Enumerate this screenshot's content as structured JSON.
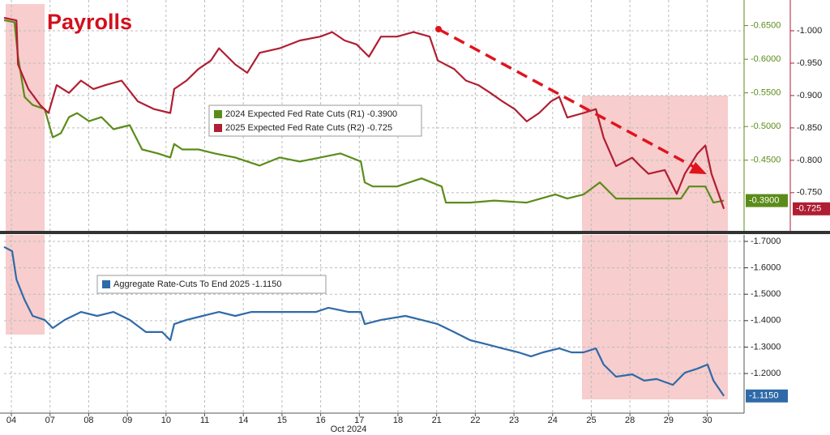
{
  "chart_data": [
    {
      "type": "line",
      "title": "Payrolls",
      "xlim": [
        -0.19,
        18.89
      ],
      "ylim": [
        -0.345,
        -0.688
      ],
      "yticks": [
        {
          "value": -0.65,
          "label": "-0.6500"
        },
        {
          "value": -0.6,
          "label": "-0.6000"
        },
        {
          "value": -0.55,
          "label": "-0.5500"
        },
        {
          "value": -0.5,
          "label": "-0.5000"
        },
        {
          "value": -0.45,
          "label": "-0.4500"
        }
      ],
      "y2lim": [
        -0.691,
        -1.0475
      ],
      "y2ticks": [
        {
          "value": -1.0,
          "label": "-1.000"
        },
        {
          "value": -0.95,
          "label": "-0.950"
        },
        {
          "value": -0.9,
          "label": "-0.900"
        },
        {
          "value": -0.85,
          "label": "-0.850"
        },
        {
          "value": -0.8,
          "label": "-0.800"
        },
        {
          "value": -0.75,
          "label": "-0.750"
        }
      ],
      "grid": true,
      "series": [
        {
          "name": "2024 Expected Fed Rate Cuts (R1) -0.3900",
          "color": "#5b8c1a",
          "axis": "y",
          "end_label": "-0.3900",
          "x": [
            -0.19,
            0.08,
            0.17,
            0.34,
            0.55,
            0.86,
            1.07,
            1.28,
            1.49,
            1.7,
            2.01,
            2.33,
            2.64,
            3.06,
            3.38,
            3.79,
            4.11,
            4.21,
            4.42,
            4.84,
            5.26,
            5.79,
            6.42,
            6.94,
            7.46,
            7.99,
            8.51,
            9.04,
            9.14,
            9.35,
            9.98,
            10.61,
            11.13,
            11.24,
            11.87,
            12.49,
            13.33,
            14.07,
            14.38,
            14.8,
            15.22,
            15.64,
            16.27,
            16.69,
            17.32,
            17.53,
            17.95,
            18.16,
            18.43
          ],
          "values": [
            -0.658,
            -0.655,
            -0.604,
            -0.544,
            -0.532,
            -0.526,
            -0.484,
            -0.49,
            -0.514,
            -0.52,
            -0.508,
            -0.514,
            -0.496,
            -0.502,
            -0.466,
            -0.46,
            -0.454,
            -0.474,
            -0.466,
            -0.466,
            -0.46,
            -0.454,
            -0.442,
            -0.454,
            -0.448,
            -0.454,
            -0.46,
            -0.448,
            -0.417,
            -0.411,
            -0.411,
            -0.423,
            -0.411,
            -0.387,
            -0.387,
            -0.39,
            -0.387,
            -0.399,
            -0.393,
            -0.399,
            -0.417,
            -0.393,
            -0.393,
            -0.393,
            -0.393,
            -0.411,
            -0.411,
            -0.387,
            -0.39
          ]
        },
        {
          "name": "2025 Expected Fed Rate Cuts (R2) -0.725",
          "color": "#b01e32",
          "axis": "y2",
          "end_label": "-0.725",
          "x": [
            -0.19,
            0.13,
            0.17,
            0.44,
            0.75,
            0.96,
            1.17,
            1.49,
            1.8,
            2.12,
            2.43,
            2.85,
            3.27,
            3.69,
            4.11,
            4.21,
            4.53,
            4.84,
            5.16,
            5.37,
            5.79,
            6.1,
            6.42,
            6.94,
            7.46,
            7.99,
            8.3,
            8.62,
            8.93,
            9.25,
            9.56,
            9.98,
            10.4,
            10.82,
            11.03,
            11.45,
            11.76,
            12.08,
            12.39,
            12.7,
            13.02,
            13.33,
            13.65,
            13.96,
            14.17,
            14.38,
            14.8,
            15.12,
            15.32,
            15.64,
            16.06,
            16.27,
            16.48,
            16.9,
            17.21,
            17.42,
            17.74,
            17.95,
            18.11,
            18.43
          ],
          "values": [
            -1.02,
            -1.016,
            -0.948,
            -0.91,
            -0.885,
            -0.873,
            -0.916,
            -0.904,
            -0.923,
            -0.91,
            -0.916,
            -0.923,
            -0.891,
            -0.879,
            -0.873,
            -0.91,
            -0.923,
            -0.941,
            -0.954,
            -0.973,
            -0.948,
            -0.935,
            -0.966,
            -0.973,
            -0.985,
            -0.991,
            -0.998,
            -0.985,
            -0.979,
            -0.96,
            -0.991,
            -0.991,
            -0.998,
            -0.991,
            -0.954,
            -0.941,
            -0.923,
            -0.916,
            -0.904,
            -0.891,
            -0.879,
            -0.86,
            -0.873,
            -0.891,
            -0.898,
            -0.866,
            -0.873,
            -0.879,
            -0.835,
            -0.791,
            -0.804,
            -0.791,
            -0.779,
            -0.785,
            -0.748,
            -0.779,
            -0.81,
            -0.823,
            -0.779,
            -0.725
          ]
        }
      ]
    },
    {
      "type": "line",
      "xlim": [
        -0.19,
        18.89
      ],
      "xticks": [
        {
          "value": 0,
          "label": "04"
        },
        {
          "value": 1,
          "label": "07"
        },
        {
          "value": 2,
          "label": "08"
        },
        {
          "value": 3,
          "label": "09"
        },
        {
          "value": 4,
          "label": "10"
        },
        {
          "value": 5,
          "label": "11"
        },
        {
          "value": 6,
          "label": "14"
        },
        {
          "value": 7,
          "label": "15"
        },
        {
          "value": 8,
          "label": "16"
        },
        {
          "value": 9,
          "label": "17"
        },
        {
          "value": 10,
          "label": "18"
        },
        {
          "value": 11,
          "label": "21"
        },
        {
          "value": 12,
          "label": "22"
        },
        {
          "value": 13,
          "label": "23"
        },
        {
          "value": 14,
          "label": "24"
        },
        {
          "value": 15,
          "label": "25"
        },
        {
          "value": 16,
          "label": "28"
        },
        {
          "value": 17,
          "label": "29"
        },
        {
          "value": 18,
          "label": "30"
        }
      ],
      "xlabel": "Oct 2024",
      "ylim": [
        -1.05,
        -1.7245
      ],
      "yticks": [
        {
          "value": -1.7,
          "label": "-1.7000"
        },
        {
          "value": -1.6,
          "label": "-1.6000"
        },
        {
          "value": -1.5,
          "label": "-1.5000"
        },
        {
          "value": -1.4,
          "label": "-1.4000"
        },
        {
          "value": -1.3,
          "label": "-1.3000"
        },
        {
          "value": -1.2,
          "label": "-1.2000"
        }
      ],
      "grid": true,
      "series": [
        {
          "name": "Aggregate Rate-Cuts To End 2025 -1.1150",
          "color": "#2f6aa8",
          "axis": "y",
          "end_label": "-1.1150",
          "x": [
            -0.19,
            0.02,
            0.13,
            0.34,
            0.55,
            0.86,
            1.07,
            1.38,
            1.8,
            2.22,
            2.64,
            3.06,
            3.48,
            3.9,
            4.11,
            4.21,
            4.53,
            4.95,
            5.37,
            5.79,
            6.21,
            6.62,
            7.25,
            7.88,
            8.2,
            8.72,
            9.04,
            9.14,
            9.56,
            10.19,
            10.61,
            11.03,
            11.45,
            11.87,
            12.29,
            12.7,
            13.12,
            13.44,
            13.75,
            14.17,
            14.49,
            14.8,
            15.12,
            15.32,
            15.64,
            16.06,
            16.37,
            16.69,
            17.11,
            17.42,
            17.74,
            18.01,
            18.16,
            18.43
          ],
          "values": [
            -1.679,
            -1.663,
            -1.556,
            -1.479,
            -1.418,
            -1.403,
            -1.372,
            -1.403,
            -1.433,
            -1.418,
            -1.433,
            -1.403,
            -1.357,
            -1.357,
            -1.326,
            -1.387,
            -1.403,
            -1.418,
            -1.433,
            -1.418,
            -1.433,
            -1.433,
            -1.433,
            -1.433,
            -1.449,
            -1.433,
            -1.433,
            -1.387,
            -1.403,
            -1.418,
            -1.403,
            -1.387,
            -1.357,
            -1.326,
            -1.311,
            -1.295,
            -1.28,
            -1.265,
            -1.28,
            -1.295,
            -1.28,
            -1.28,
            -1.295,
            -1.234,
            -1.188,
            -1.197,
            -1.173,
            -1.179,
            -1.157,
            -1.203,
            -1.218,
            -1.234,
            -1.173,
            -1.115
          ]
        }
      ]
    }
  ]
}
